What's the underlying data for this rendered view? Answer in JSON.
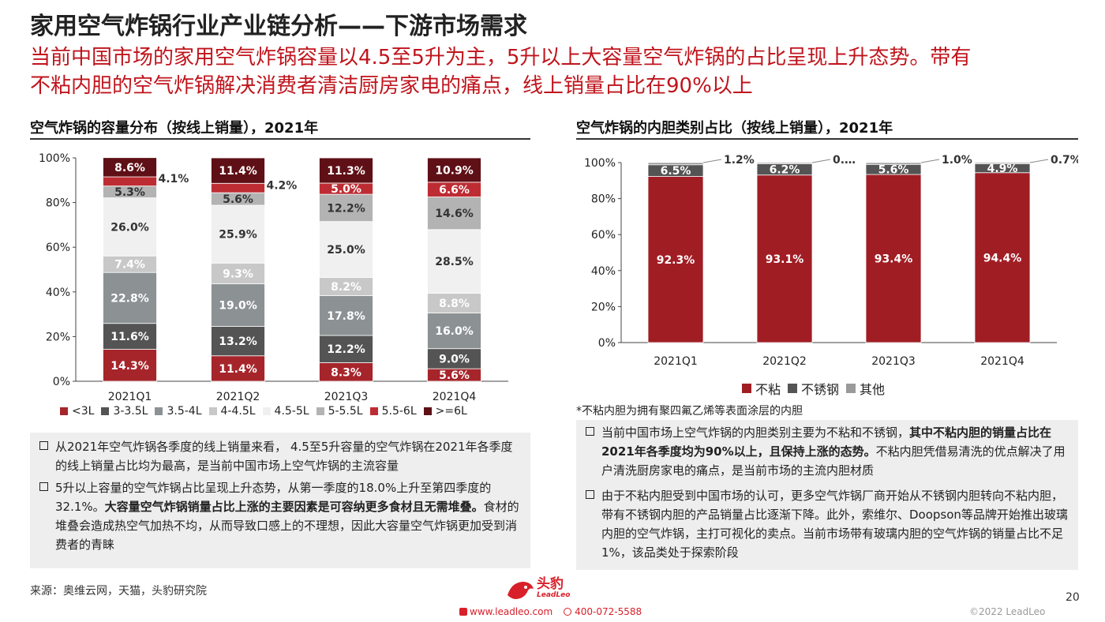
{
  "header": {
    "title": "家用空气炸锅行业产业链分析——下游市场需求",
    "subtitle_line1": "当前中国市场的家用空气炸锅容量以4.5至5升为主，5升以上大容量空气炸锅的占比呈现上升态势。带有",
    "subtitle_line2": "不粘内胆的空气炸锅解决消费者清洁厨房家电的痛点，线上销量占比在90%以上"
  },
  "left": {
    "section_title": "空气炸锅的容量分布（按线上销量），2021年",
    "chart_data": {
      "type": "bar",
      "stacked": true,
      "categories": [
        "2021Q1",
        "2021Q2",
        "2021Q3",
        "2021Q4"
      ],
      "ylim": [
        0,
        100
      ],
      "y_ticks": [
        "0%",
        "20%",
        "40%",
        "60%",
        "80%",
        "100%"
      ],
      "series": [
        {
          "name": "<3L",
          "color": "#a6252b",
          "label_color": "#ffffff",
          "values": [
            14.3,
            11.4,
            8.3,
            5.6
          ],
          "labels": [
            "14.3%",
            "11.4%",
            "8.3%",
            "5.6%"
          ]
        },
        {
          "name": "3-3.5L",
          "color": "#545454",
          "label_color": "#ffffff",
          "values": [
            11.6,
            13.2,
            12.2,
            9.0
          ],
          "labels": [
            "11.6%",
            "13.2%",
            "12.2%",
            "9.0%"
          ]
        },
        {
          "name": "3.5-4L",
          "color": "#8c9194",
          "label_color": "#ffffff",
          "values": [
            22.8,
            19.0,
            17.8,
            16.0
          ],
          "labels": [
            "22.8%",
            "19.0%",
            "17.8%",
            "16.0%"
          ]
        },
        {
          "name": "4-4.5L",
          "color": "#c8c8c8",
          "label_color": "#ffffff",
          "values": [
            7.4,
            9.3,
            8.2,
            8.8
          ],
          "labels": [
            "7.4%",
            "9.3%",
            "8.2%",
            "8.8%"
          ]
        },
        {
          "name": "4.5-5L",
          "color": "#f0f0f0",
          "label_color": "#333333",
          "values": [
            26.0,
            25.9,
            25.0,
            28.5
          ],
          "labels": [
            "26.0%",
            "25.9%",
            "25.0%",
            "28.5%"
          ]
        },
        {
          "name": "5-5.5L",
          "color": "#b3b3b3",
          "label_color": "#333333",
          "values": [
            5.3,
            5.6,
            12.2,
            14.6
          ],
          "labels": [
            "5.3%",
            "5.6%",
            "12.2%",
            "14.6%"
          ]
        },
        {
          "name": "5.5-6L",
          "color": "#be2c33",
          "label_color": "#ffffff",
          "values": [
            4.1,
            4.2,
            5.0,
            6.6
          ],
          "labels": [
            "4.1%",
            "4.2%",
            "5.0%",
            "6.6%"
          ]
        },
        {
          "name": ">=6L",
          "color": "#5e1016",
          "label_color": "#ffffff",
          "values": [
            8.6,
            11.4,
            11.3,
            10.9
          ],
          "labels": [
            "8.6%",
            "11.4%",
            "11.3%",
            "10.9%"
          ]
        }
      ]
    },
    "bullets": [
      {
        "text": "从2021年空气炸锅各季度的线上销量来看， 4.5至5升容量的空气炸锅在2021年各季度的线上销量占比均为最高，是当前中国市场上空气炸锅的主流容量"
      },
      {
        "text_a": "5升以上容量的空气炸锅占比呈现上升态势，从第一季度的18.0%上升至第四季度的32.1%。",
        "text_b": "大容量空气炸锅销量占比上涨的主要因素是可容纳更多食材且无需堆叠。",
        "text_c": "食材的堆叠会造成热空气加热不均，从而导致口感上的不理想，因此大容量空气炸锅更加受到消费者的青睐"
      }
    ],
    "source": "来源：奥维云网，天猫，头豹研究院"
  },
  "right": {
    "section_title": "空气炸锅的内胆类别占比（按线上销量），2021年",
    "chart_data": {
      "type": "bar",
      "stacked": true,
      "categories": [
        "2021Q1",
        "2021Q2",
        "2021Q3",
        "2021Q4"
      ],
      "ylim": [
        0,
        100
      ],
      "y_ticks": [
        "0%",
        "20%",
        "40%",
        "60%",
        "80%",
        "100%"
      ],
      "series": [
        {
          "name": "不粘",
          "color": "#a11d24",
          "label_color": "#ffffff",
          "values": [
            92.3,
            93.1,
            93.4,
            94.4
          ],
          "labels": [
            "92.3%",
            "93.1%",
            "93.4%",
            "94.4%"
          ]
        },
        {
          "name": "不锈钢",
          "color": "#545454",
          "label_color": "#ffffff",
          "values": [
            6.5,
            6.2,
            5.6,
            4.9
          ],
          "labels": [
            "6.5%",
            "6.2%",
            "5.6%",
            "4.9%"
          ]
        },
        {
          "name": "其他",
          "color": "#9a9a9a",
          "label_color": "#333333",
          "values": [
            1.2,
            0.7,
            1.0,
            0.7
          ],
          "labels": [
            "1.2%",
            "0.…",
            "1.0%",
            "0.7%"
          ]
        }
      ]
    },
    "footnote": "*不粘内胆为拥有聚四氟乙烯等表面涂层的内胆",
    "bullets": [
      {
        "text_a": "当前中国市场上空气炸锅的内胆类别主要为不粘和不锈钢，",
        "text_b": "其中不粘内胆的销量占比在2021年各季度均为90%以上，且保持上涨的态势。",
        "text_c": "不粘内胆凭借易清洗的优点解决了用户清洗厨房家电的痛点，是当前市场的主流内胆材质"
      },
      {
        "text": "由于不粘内胆受到中国市场的认可，更多空气炸锅厂商开始从不锈钢内胆转向不粘内胆，带有不锈钢内胆的产品销量占比逐渐下降。此外，索维尔、Doopson等品牌开始推出玻璃内胆的空气炸锅，主打可视化的卖点。当前市场带有玻璃内胆的空气炸锅的销量占比不足1%，该品类处于探索阶段"
      }
    ]
  },
  "footer": {
    "logo_text": "头豹",
    "logo_sub": "LeadLeo",
    "website": "www.leadleo.com",
    "phone": "400-072-5588",
    "copyright": "©2022 LeadLeo",
    "page_number": "20"
  }
}
